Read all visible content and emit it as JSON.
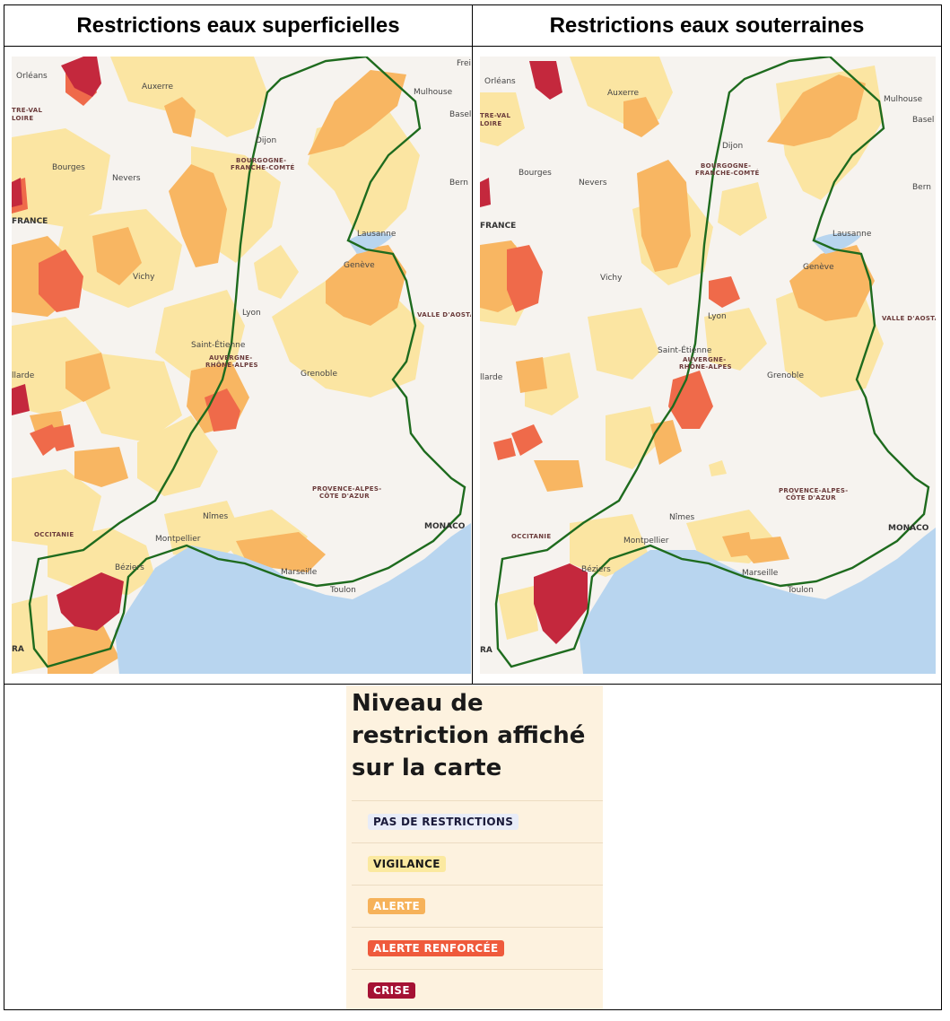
{
  "headers": {
    "surface": "Restrictions eaux superficielles",
    "ground": "Restrictions eaux souterraines"
  },
  "map_labels": {
    "orleans": "Orléans",
    "auxerre": "Auxerre",
    "centre_val_loire_1": "TRE-VAL",
    "centre_val_loire_2": "LOIRE",
    "bourges": "Bourges",
    "nevers": "Nevers",
    "dijon": "Dijon",
    "bfc_1": "BOURGOGNE-",
    "bfc_2": "FRANCHE-COMTÉ",
    "mulhouse": "Mulhouse",
    "basel": "Basel",
    "bern": "Bern",
    "frei": "Frei",
    "france": "FRANCE",
    "lausanne": "Lausanne",
    "geneve": "Genève",
    "vichy": "Vichy",
    "lyon": "Lyon",
    "valle_daosta": "VALLE D'AOSTA",
    "saint_etienne": "Saint-Étienne",
    "ara_1": "AUVERGNE-",
    "ara_2": "RHÔNE-ALPES",
    "grenoble": "Grenoble",
    "illarde": "llarde",
    "paca_1": "PROVENCE-ALPES-",
    "paca_2": "CÔTE D'AZUR",
    "nimes": "Nîmes",
    "occitanie": "OCCITANIE",
    "monaco": "MONACO",
    "montpellier": "Montpellier",
    "beziers": "Béziers",
    "marseille": "Marseille",
    "toulon": "Toulon",
    "ra": "RA"
  },
  "legend": {
    "title_line1": "Niveau de",
    "title_line2": "restriction affiché",
    "title_line3": "sur la carte",
    "levels": [
      {
        "label": "PAS DE RESTRICTIONS",
        "bg": "#e8ecf8",
        "fg": "#1a1a3a"
      },
      {
        "label": "VIGILANCE",
        "bg": "#fbe9a0",
        "fg": "#1a1a1a"
      },
      {
        "label": "ALERTE",
        "bg": "#f6b25a",
        "fg": "#ffffff"
      },
      {
        "label": "ALERTE RENFORCÉE",
        "bg": "#ef5a3c",
        "fg": "#ffffff"
      },
      {
        "label": "CRISE",
        "bg": "#a51234",
        "fg": "#ffffff"
      }
    ]
  },
  "colors": {
    "none": "#f6f3ef",
    "vigilance": "#fbe5a2",
    "alerte": "#f8b662",
    "renforcee": "#ef6a4a",
    "crise": "#c4283d",
    "sea": "#b8d5ef",
    "outline": "#1e6b1e"
  }
}
